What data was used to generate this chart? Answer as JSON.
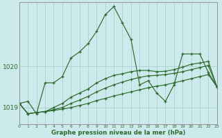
{
  "xlabel_label": "Graphe pression niveau de la mer (hPa)",
  "bg_color": "#cce9eb",
  "line_color": "#2d6a2d",
  "grid_color": "#b0d4d6",
  "ylim": [
    1018.6,
    1021.55
  ],
  "xlim": [
    0,
    23
  ],
  "yticks": [
    1019,
    1020
  ],
  "xticks": [
    0,
    1,
    2,
    3,
    4,
    5,
    6,
    7,
    8,
    9,
    10,
    11,
    12,
    13,
    14,
    15,
    16,
    17,
    18,
    19,
    20,
    21,
    22,
    23
  ],
  "series": [
    {
      "x": [
        0,
        1,
        2,
        3,
        4,
        5,
        6,
        7,
        8,
        9,
        10,
        11,
        12,
        13,
        14,
        15,
        16,
        17,
        18,
        19,
        20,
        21,
        22,
        23
      ],
      "y": [
        1019.1,
        1019.15,
        1018.85,
        1019.6,
        1019.6,
        1019.75,
        1020.2,
        1020.35,
        1020.55,
        1020.85,
        1021.25,
        1021.45,
        1021.05,
        1020.65,
        1019.55,
        1019.65,
        1019.35,
        1019.15,
        1019.55,
        1020.3,
        1020.3,
        1020.3,
        1019.85,
        1019.5
      ]
    },
    {
      "x": [
        0,
        1,
        2,
        3,
        4,
        5,
        6,
        7,
        8,
        9,
        10,
        11,
        12,
        13,
        14,
        15,
        16,
        17,
        18,
        19,
        20,
        21,
        22,
        23
      ],
      "y": [
        1019.1,
        1018.85,
        1018.88,
        1018.9,
        1019.0,
        1019.1,
        1019.25,
        1019.35,
        1019.45,
        1019.6,
        1019.7,
        1019.78,
        1019.82,
        1019.87,
        1019.9,
        1019.9,
        1019.87,
        1019.88,
        1019.92,
        1019.98,
        1020.05,
        1020.08,
        1020.12,
        1019.5
      ]
    },
    {
      "x": [
        0,
        1,
        2,
        3,
        4,
        5,
        6,
        7,
        8,
        9,
        10,
        11,
        12,
        13,
        14,
        15,
        16,
        17,
        18,
        19,
        20,
        21,
        22,
        23
      ],
      "y": [
        1019.1,
        1018.85,
        1018.88,
        1018.9,
        1018.95,
        1019.0,
        1019.1,
        1019.18,
        1019.27,
        1019.38,
        1019.47,
        1019.55,
        1019.62,
        1019.68,
        1019.73,
        1019.77,
        1019.78,
        1019.8,
        1019.83,
        1019.87,
        1019.92,
        1019.97,
        1020.02,
        1019.5
      ]
    },
    {
      "x": [
        0,
        1,
        2,
        3,
        4,
        5,
        6,
        7,
        8,
        9,
        10,
        11,
        12,
        13,
        14,
        15,
        16,
        17,
        18,
        19,
        20,
        21,
        22,
        23
      ],
      "y": [
        1019.1,
        1018.85,
        1018.88,
        1018.9,
        1018.93,
        1018.96,
        1019.0,
        1019.05,
        1019.1,
        1019.17,
        1019.22,
        1019.28,
        1019.33,
        1019.38,
        1019.43,
        1019.48,
        1019.52,
        1019.55,
        1019.6,
        1019.65,
        1019.7,
        1019.75,
        1019.8,
        1019.5
      ]
    }
  ]
}
